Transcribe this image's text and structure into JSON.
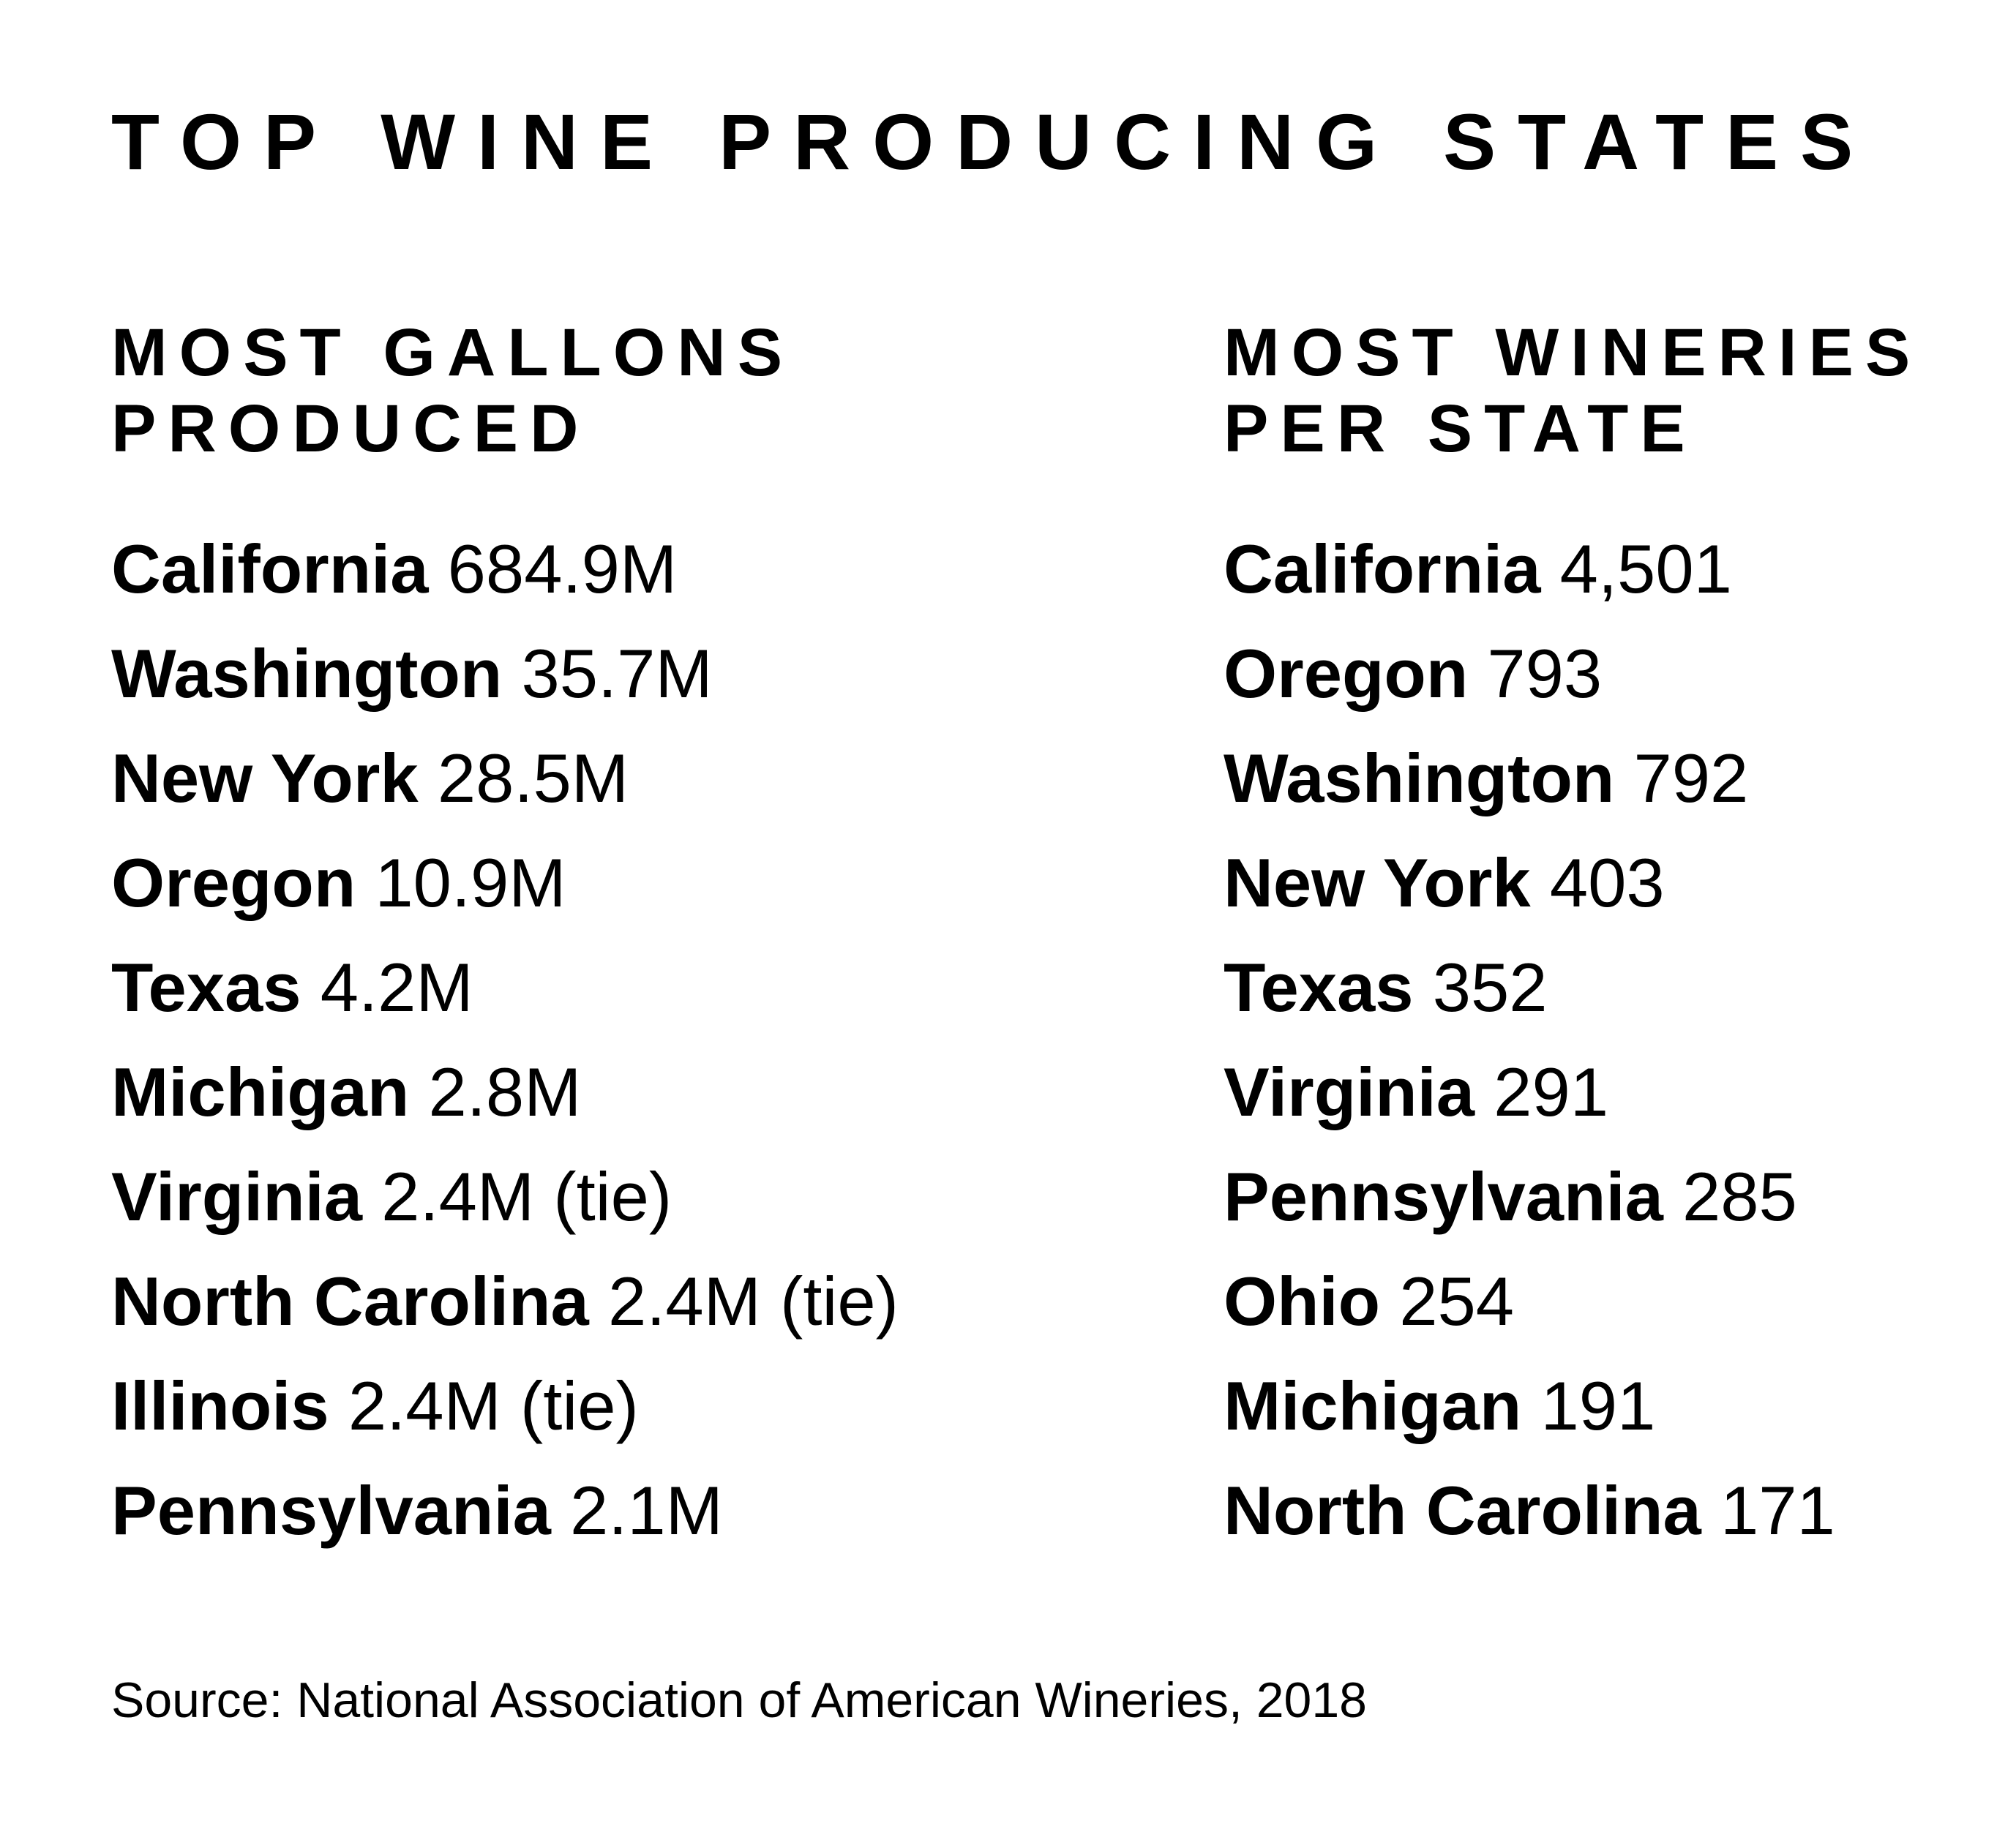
{
  "title": "TOP WINE PRODUCING STATES",
  "gallons": {
    "heading_line1": "MOST GALLONS",
    "heading_line2": "PRODUCED",
    "rows": [
      {
        "state": "California",
        "value": "684.9M"
      },
      {
        "state": "Washington",
        "value": "35.7M"
      },
      {
        "state": "New York",
        "value": "28.5M"
      },
      {
        "state": "Oregon",
        "value": "10.9M"
      },
      {
        "state": "Texas",
        "value": "4.2M"
      },
      {
        "state": "Michigan",
        "value": "2.8M"
      },
      {
        "state": "Virginia",
        "value": "2.4M (tie)"
      },
      {
        "state": "North Carolina",
        "value": "2.4M (tie)"
      },
      {
        "state": "Illinois",
        "value": "2.4M (tie)"
      },
      {
        "state": "Pennsylvania",
        "value": "2.1M"
      }
    ]
  },
  "wineries": {
    "heading_line1": "MOST WINERIES",
    "heading_line2": "PER STATE",
    "rows": [
      {
        "state": "California",
        "value": "4,501"
      },
      {
        "state": "Oregon",
        "value": "793"
      },
      {
        "state": "Washington",
        "value": "792"
      },
      {
        "state": "New York",
        "value": "403"
      },
      {
        "state": "Texas",
        "value": "352"
      },
      {
        "state": "Virginia",
        "value": "291"
      },
      {
        "state": "Pennsylvania",
        "value": "285"
      },
      {
        "state": "Ohio",
        "value": "254"
      },
      {
        "state": "Michigan",
        "value": "191"
      },
      {
        "state": "North Carolina",
        "value": "171"
      }
    ]
  },
  "source": "Source: National Association of American Wineries, 2018"
}
